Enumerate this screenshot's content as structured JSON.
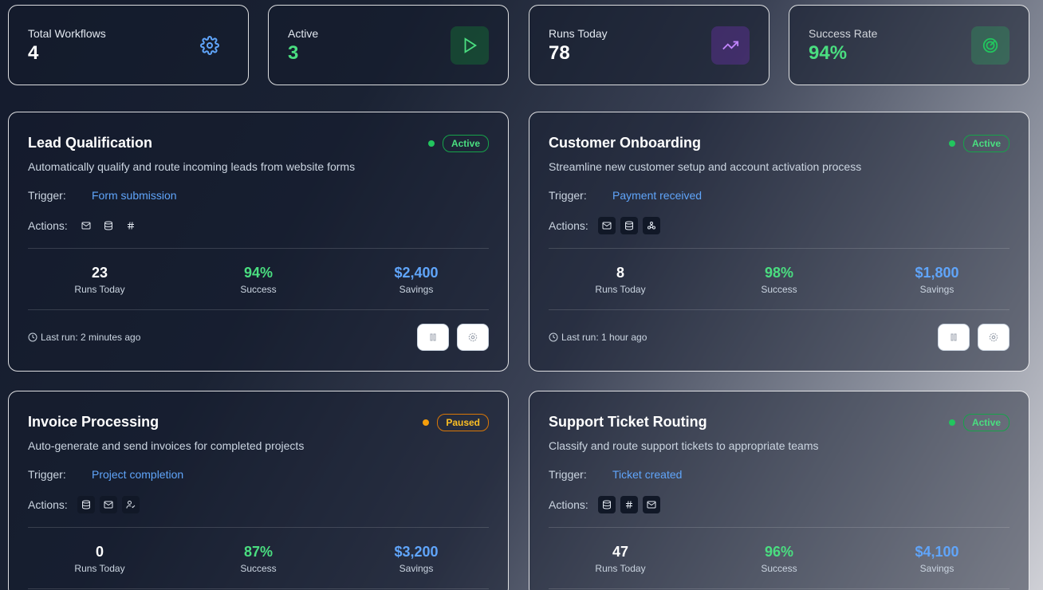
{
  "stats": [
    {
      "label": "Total Workflows",
      "value": "4",
      "icon": "gear-icon"
    },
    {
      "label": "Active",
      "value": "3",
      "icon": "play-icon"
    },
    {
      "label": "Runs Today",
      "value": "78",
      "icon": "trending-up-icon"
    },
    {
      "label": "Success Rate",
      "value": "94%",
      "icon": "target-icon"
    }
  ],
  "labels": {
    "trigger": "Trigger:",
    "actions": "Actions:",
    "runs_today": "Runs Today",
    "success": "Success",
    "savings": "Savings"
  },
  "workflows": [
    {
      "title": "Lead Qualification",
      "status": "Active",
      "description": "Automatically qualify and route incoming leads from website forms",
      "trigger": "Form submission",
      "actions": [
        "mail-icon",
        "database-icon",
        "hash-icon"
      ],
      "runs_today": "23",
      "success": "94%",
      "savings": "$2,400",
      "last_run": "Last run: 2 minutes ago"
    },
    {
      "title": "Customer Onboarding",
      "status": "Active",
      "description": "Streamline new customer setup and account activation process",
      "trigger": "Payment received",
      "actions": [
        "mail-icon",
        "database-icon",
        "webhook-icon"
      ],
      "runs_today": "8",
      "success": "98%",
      "savings": "$1,800",
      "last_run": "Last run: 1 hour ago"
    },
    {
      "title": "Invoice Processing",
      "status": "Paused",
      "description": "Auto-generate and send invoices for completed projects",
      "trigger": "Project completion",
      "actions": [
        "database-icon",
        "mail-icon",
        "user-check-icon"
      ],
      "runs_today": "0",
      "success": "87%",
      "savings": "$3,200"
    },
    {
      "title": "Support Ticket Routing",
      "status": "Active",
      "description": "Classify and route support tickets to appropriate teams",
      "trigger": "Ticket created",
      "actions": [
        "database-icon",
        "hash-icon",
        "mail-icon"
      ],
      "runs_today": "47",
      "success": "96%",
      "savings": "$4,100"
    }
  ],
  "colors": {
    "accent_blue": "#60a5fa",
    "success_green": "#4ade80",
    "paused_amber": "#fbbf24"
  }
}
